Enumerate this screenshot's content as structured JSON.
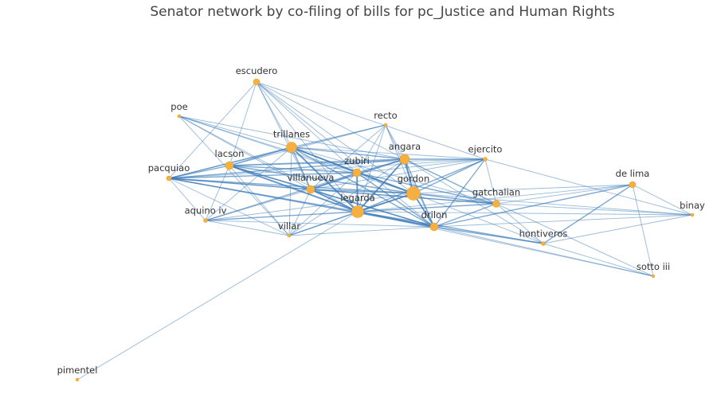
{
  "title": "Senator network by co-filing of bills for pc_Justice and Human Rights",
  "colors": {
    "node": "#f5b041",
    "edge": "#3b7bb8",
    "background": "#ffffff"
  },
  "chart_data": {
    "type": "network",
    "nodes": [
      {
        "id": "escudero",
        "label": "escudero",
        "size": 8,
        "label_pos": "above"
      },
      {
        "id": "poe",
        "label": "poe",
        "size": 4,
        "label_pos": "above"
      },
      {
        "id": "recto",
        "label": "recto",
        "size": 4,
        "label_pos": "above"
      },
      {
        "id": "trillanes",
        "label": "trillanes",
        "size": 13,
        "label_pos": "above"
      },
      {
        "id": "angara",
        "label": "angara",
        "size": 12,
        "label_pos": "above"
      },
      {
        "id": "ejercito",
        "label": "ejercito",
        "size": 5,
        "label_pos": "above"
      },
      {
        "id": "lacson",
        "label": "lacson",
        "size": 10,
        "label_pos": "above"
      },
      {
        "id": "zubiri",
        "label": "zubiri",
        "size": 10,
        "label_pos": "above"
      },
      {
        "id": "pacquiao",
        "label": "pacquiao",
        "size": 6,
        "label_pos": "above"
      },
      {
        "id": "gordon",
        "label": "gordon",
        "size": 17,
        "label_pos": "above"
      },
      {
        "id": "villanueva",
        "label": "villanueva",
        "size": 10,
        "label_pos": "above"
      },
      {
        "id": "de_lima",
        "label": "de lima",
        "size": 8,
        "label_pos": "above"
      },
      {
        "id": "legarda",
        "label": "legarda",
        "size": 15,
        "label_pos": "above"
      },
      {
        "id": "gatchalian",
        "label": "gatchalian",
        "size": 9,
        "label_pos": "above"
      },
      {
        "id": "binay",
        "label": "binay",
        "size": 4,
        "label_pos": "above"
      },
      {
        "id": "aquino_iv",
        "label": "aquino iv",
        "size": 5,
        "label_pos": "above"
      },
      {
        "id": "drilon",
        "label": "drilon",
        "size": 10,
        "label_pos": "above"
      },
      {
        "id": "villar",
        "label": "villar",
        "size": 4,
        "label_pos": "above"
      },
      {
        "id": "hontiveros",
        "label": "hontiveros",
        "size": 5,
        "label_pos": "above"
      },
      {
        "id": "sotto_iii",
        "label": "sotto iii",
        "size": 3,
        "label_pos": "above"
      },
      {
        "id": "pimentel",
        "label": "pimentel",
        "size": 3,
        "label_pos": "above"
      }
    ],
    "edges": [
      [
        "escudero",
        "trillanes",
        1
      ],
      [
        "escudero",
        "angara",
        1
      ],
      [
        "escudero",
        "zubiri",
        1
      ],
      [
        "escudero",
        "gordon",
        1
      ],
      [
        "escudero",
        "legarda",
        1
      ],
      [
        "escudero",
        "villanueva",
        1
      ],
      [
        "escudero",
        "lacson",
        1
      ],
      [
        "escudero",
        "pacquiao",
        1
      ],
      [
        "escudero",
        "drilon",
        1
      ],
      [
        "escudero",
        "ejercito",
        1
      ],
      [
        "poe",
        "trillanes",
        1
      ],
      [
        "poe",
        "angara",
        1
      ],
      [
        "poe",
        "zubiri",
        1
      ],
      [
        "poe",
        "legarda",
        1
      ],
      [
        "poe",
        "gordon",
        1
      ],
      [
        "poe",
        "villar",
        1
      ],
      [
        "poe",
        "villanueva",
        1
      ],
      [
        "recto",
        "trillanes",
        1
      ],
      [
        "recto",
        "angara",
        1
      ],
      [
        "recto",
        "zubiri",
        1
      ],
      [
        "recto",
        "gordon",
        1
      ],
      [
        "recto",
        "legarda",
        1
      ],
      [
        "recto",
        "villanueva",
        1
      ],
      [
        "recto",
        "drilon",
        1
      ],
      [
        "recto",
        "lacson",
        1
      ],
      [
        "recto",
        "pacquiao",
        1
      ],
      [
        "trillanes",
        "angara",
        2
      ],
      [
        "trillanes",
        "zubiri",
        2
      ],
      [
        "trillanes",
        "gordon",
        3
      ],
      [
        "trillanes",
        "legarda",
        3
      ],
      [
        "trillanes",
        "villanueva",
        2
      ],
      [
        "trillanes",
        "lacson",
        2
      ],
      [
        "trillanes",
        "pacquiao",
        2
      ],
      [
        "trillanes",
        "drilon",
        2
      ],
      [
        "trillanes",
        "ejercito",
        1
      ],
      [
        "trillanes",
        "gatchalian",
        1
      ],
      [
        "trillanes",
        "aquino_iv",
        1
      ],
      [
        "trillanes",
        "villar",
        1
      ],
      [
        "angara",
        "zubiri",
        2
      ],
      [
        "angara",
        "gordon",
        3
      ],
      [
        "angara",
        "legarda",
        3
      ],
      [
        "angara",
        "villanueva",
        2
      ],
      [
        "angara",
        "lacson",
        2
      ],
      [
        "angara",
        "pacquiao",
        2
      ],
      [
        "angara",
        "drilon",
        2
      ],
      [
        "angara",
        "ejercito",
        2
      ],
      [
        "angara",
        "gatchalian",
        2
      ],
      [
        "angara",
        "aquino_iv",
        1
      ],
      [
        "angara",
        "hontiveros",
        1
      ],
      [
        "angara",
        "villar",
        1
      ],
      [
        "ejercito",
        "zubiri",
        1
      ],
      [
        "ejercito",
        "gordon",
        2
      ],
      [
        "ejercito",
        "legarda",
        2
      ],
      [
        "ejercito",
        "villanueva",
        1
      ],
      [
        "ejercito",
        "drilon",
        2
      ],
      [
        "ejercito",
        "gatchalian",
        1
      ],
      [
        "ejercito",
        "pacquiao",
        1
      ],
      [
        "ejercito",
        "lacson",
        1
      ],
      [
        "ejercito",
        "binay",
        1
      ],
      [
        "lacson",
        "zubiri",
        2
      ],
      [
        "lacson",
        "gordon",
        2
      ],
      [
        "lacson",
        "legarda",
        3
      ],
      [
        "lacson",
        "villanueva",
        2
      ],
      [
        "lacson",
        "pacquiao",
        2
      ],
      [
        "lacson",
        "drilon",
        2
      ],
      [
        "lacson",
        "aquino_iv",
        1
      ],
      [
        "lacson",
        "villar",
        1
      ],
      [
        "zubiri",
        "gordon",
        2
      ],
      [
        "zubiri",
        "legarda",
        3
      ],
      [
        "zubiri",
        "villanueva",
        2
      ],
      [
        "zubiri",
        "drilon",
        2
      ],
      [
        "zubiri",
        "pacquiao",
        2
      ],
      [
        "zubiri",
        "gatchalian",
        2
      ],
      [
        "zubiri",
        "aquino_iv",
        1
      ],
      [
        "zubiri",
        "villar",
        1
      ],
      [
        "pacquiao",
        "gordon",
        2
      ],
      [
        "pacquiao",
        "legarda",
        2
      ],
      [
        "pacquiao",
        "villanueva",
        2
      ],
      [
        "pacquiao",
        "drilon",
        2
      ],
      [
        "pacquiao",
        "aquino_iv",
        1
      ],
      [
        "pacquiao",
        "villar",
        1
      ],
      [
        "pacquiao",
        "gatchalian",
        1
      ],
      [
        "gordon",
        "legarda",
        3
      ],
      [
        "gordon",
        "villanueva",
        2
      ],
      [
        "gordon",
        "drilon",
        3
      ],
      [
        "gordon",
        "gatchalian",
        2
      ],
      [
        "gordon",
        "de_lima",
        1
      ],
      [
        "gordon",
        "hontiveros",
        1
      ],
      [
        "gordon",
        "aquino_iv",
        1
      ],
      [
        "gordon",
        "villar",
        1
      ],
      [
        "gordon",
        "binay",
        1
      ],
      [
        "villanueva",
        "legarda",
        3
      ],
      [
        "villanueva",
        "drilon",
        2
      ],
      [
        "villanueva",
        "gatchalian",
        2
      ],
      [
        "villanueva",
        "aquino_iv",
        1
      ],
      [
        "villanueva",
        "villar",
        1
      ],
      [
        "legarda",
        "drilon",
        3
      ],
      [
        "legarda",
        "gatchalian",
        2
      ],
      [
        "legarda",
        "de_lima",
        1
      ],
      [
        "legarda",
        "hontiveros",
        2
      ],
      [
        "legarda",
        "aquino_iv",
        2
      ],
      [
        "legarda",
        "villar",
        2
      ],
      [
        "legarda",
        "sotto_iii",
        1
      ],
      [
        "legarda",
        "pimentel",
        1
      ],
      [
        "legarda",
        "binay",
        1
      ],
      [
        "drilon",
        "gatchalian",
        2
      ],
      [
        "drilon",
        "hontiveros",
        2
      ],
      [
        "drilon",
        "de_lima",
        2
      ],
      [
        "drilon",
        "binay",
        1
      ],
      [
        "drilon",
        "sotto_iii",
        1
      ],
      [
        "drilon",
        "aquino_iv",
        1
      ],
      [
        "drilon",
        "villar",
        1
      ],
      [
        "gatchalian",
        "de_lima",
        1
      ],
      [
        "gatchalian",
        "binay",
        1
      ],
      [
        "gatchalian",
        "hontiveros",
        1
      ],
      [
        "gatchalian",
        "sotto_iii",
        1
      ],
      [
        "de_lima",
        "binay",
        1
      ],
      [
        "de_lima",
        "hontiveros",
        2
      ],
      [
        "de_lima",
        "sotto_iii",
        1
      ],
      [
        "hontiveros",
        "binay",
        1
      ],
      [
        "hontiveros",
        "sotto_iii",
        1
      ],
      [
        "aquino_iv",
        "villar",
        1
      ]
    ]
  }
}
